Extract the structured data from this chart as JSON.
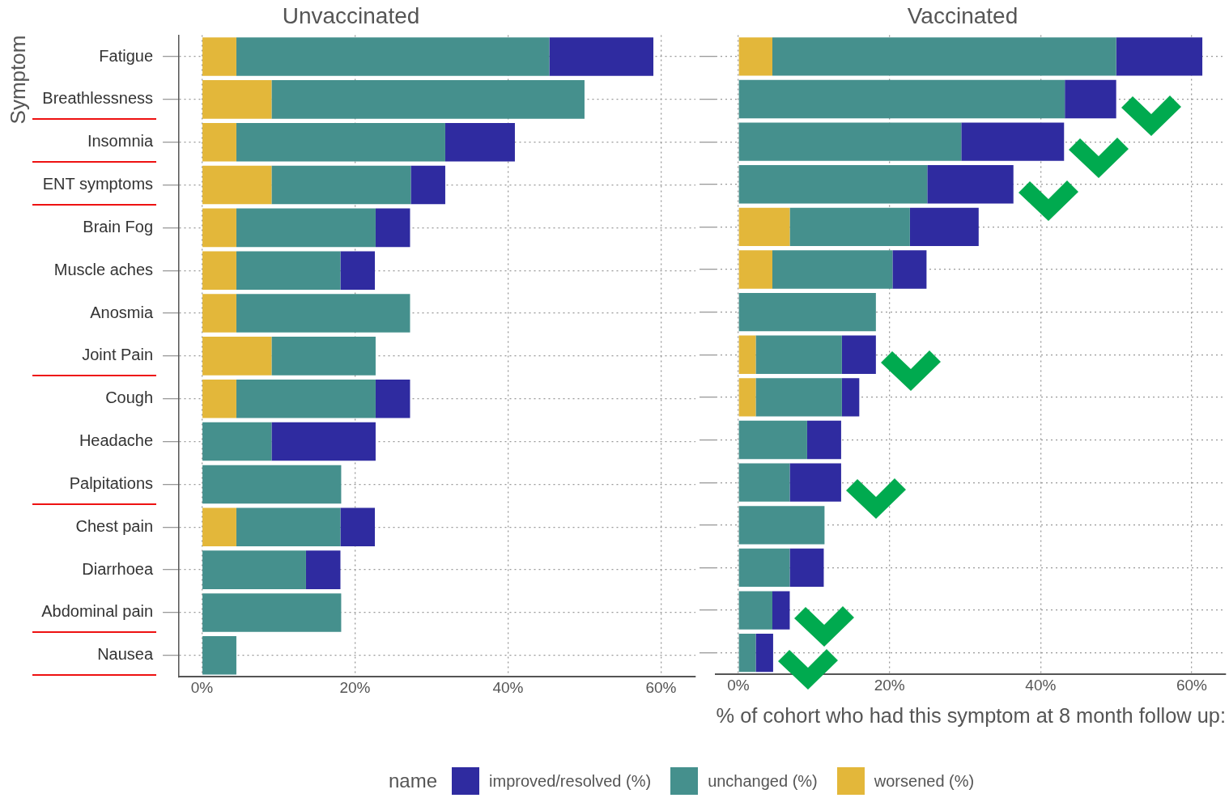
{
  "chart_data": [
    {
      "type": "bar",
      "title": "Unvaccinated",
      "ylabel": "Symptom",
      "orientation": "horizontal",
      "stacked": true,
      "grid": true,
      "legend": "bottom",
      "legend_title": "name",
      "categories": [
        "Fatigue",
        "Breathlessness",
        "Insomnia",
        "ENT symptoms",
        "Brain Fog",
        "Muscle aches",
        "Anosmia",
        "Joint Pain",
        "Cough",
        "Headache",
        "Palpitations",
        "Chest pain",
        "Diarrhoea",
        "Abdominal pain",
        "Nausea"
      ],
      "xlim": [
        -3,
        64.5
      ],
      "xticks": [
        {
          "value": 0,
          "label": "0%"
        },
        {
          "value": 20,
          "label": "20%"
        },
        {
          "value": 40,
          "label": "40%"
        },
        {
          "value": 60,
          "label": "60%"
        }
      ],
      "series": [
        {
          "name": "worsened (%)",
          "color": "#e3b73a",
          "values": [
            4.5,
            9.1,
            4.5,
            9.1,
            4.5,
            4.5,
            4.5,
            9.1,
            4.5,
            0,
            0,
            4.5,
            0,
            0,
            0
          ]
        },
        {
          "name": "unchanged (%)",
          "color": "#45908d",
          "values": [
            40.9,
            40.9,
            27.3,
            18.2,
            18.2,
            13.6,
            22.7,
            13.6,
            18.2,
            9.1,
            18.2,
            13.6,
            13.6,
            18.2,
            4.5
          ]
        },
        {
          "name": "improved/resolved (%)",
          "color": "#2f2ba0",
          "values": [
            13.6,
            0,
            9.1,
            4.5,
            4.5,
            4.5,
            0,
            0,
            4.5,
            13.6,
            0,
            4.5,
            4.5,
            0,
            0
          ]
        }
      ]
    },
    {
      "type": "bar",
      "title": "Vaccinated",
      "xlabel": "% of cohort who had this symptom at 8 month follow up:",
      "orientation": "horizontal",
      "stacked": true,
      "grid": true,
      "tick_labels": "x",
      "categories": [
        null,
        null,
        null,
        null,
        null,
        null,
        null,
        null,
        null,
        null,
        null,
        null,
        null,
        null,
        null
      ],
      "xlim": [
        -3,
        64.5
      ],
      "xticks": [
        {
          "value": 0,
          "label": "0%"
        },
        {
          "value": 20,
          "label": "20%"
        },
        {
          "value": 40,
          "label": "40%"
        },
        {
          "value": 60,
          "label": "60%"
        }
      ],
      "series": [
        {
          "color": "#e3b73a",
          "values": [
            4.5,
            0,
            0,
            0,
            6.8,
            4.5,
            0,
            2.3,
            2.3,
            0,
            0,
            0,
            0,
            0,
            0
          ]
        },
        {
          "color": "#45908d",
          "values": [
            45.5,
            43.2,
            29.5,
            25.0,
            15.9,
            15.9,
            18.2,
            11.4,
            11.4,
            9.1,
            6.8,
            11.4,
            6.8,
            4.5,
            2.3
          ]
        },
        {
          "color": "#2f2ba0",
          "values": [
            11.4,
            6.8,
            13.6,
            11.4,
            9.1,
            4.5,
            0,
            4.5,
            2.3,
            4.5,
            6.8,
            0,
            4.5,
            2.3,
            2.3
          ]
        }
      ]
    }
  ]
}
